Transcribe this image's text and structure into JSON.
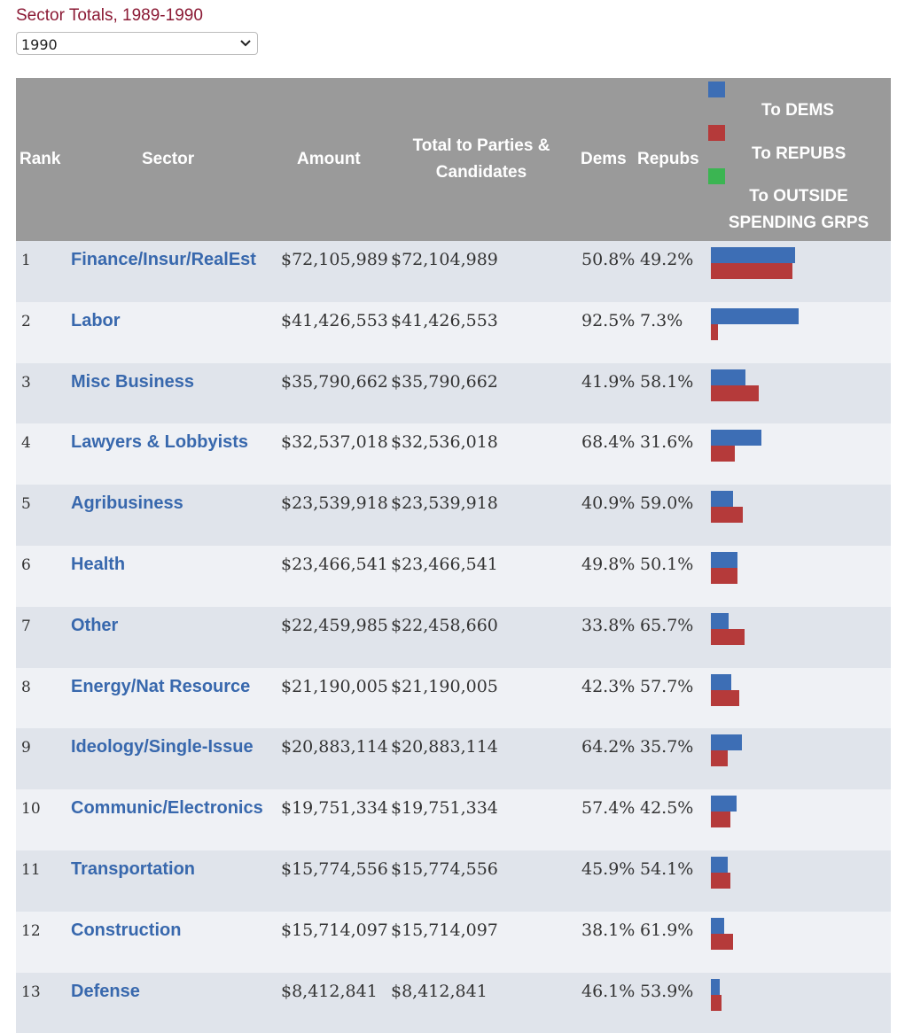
{
  "title": "Sector Totals, 1989-1990",
  "year_select": {
    "value": "1990"
  },
  "headers": {
    "rank": "Rank",
    "sector": "Sector",
    "amount": "Amount",
    "total_line1": "Total to Parties &",
    "total_line2": "Candidates",
    "dems": "Dems",
    "repubs": "Repubs",
    "legend_dems": "To DEMS",
    "legend_repubs": "To REPUBS",
    "legend_outside_line1": "To OUTSIDE",
    "legend_outside_line2": "SPENDING GRPS"
  },
  "colors": {
    "dems": "#3d6eb5",
    "repubs": "#b53a3a",
    "outside": "#3bb552",
    "title": "#8b1a35",
    "header_bg": "#9a9a9a"
  },
  "rows": [
    {
      "rank": "1",
      "sector": "Finance/Insur/RealEst",
      "amount": "$72,105,989",
      "total": "$72,104,989",
      "dems": "50.8%",
      "repubs": "49.2%",
      "dem_value": 36630000,
      "rep_value": 35470000
    },
    {
      "rank": "2",
      "sector": "Labor",
      "amount": "$41,426,553",
      "total": "$41,426,553",
      "dems": "92.5%",
      "repubs": "7.3%",
      "dem_value": 38320000,
      "rep_value": 3020000
    },
    {
      "rank": "3",
      "sector": "Misc Business",
      "amount": "$35,790,662",
      "total": "$35,790,662",
      "dems": "41.9%",
      "repubs": "58.1%",
      "dem_value": 15000000,
      "rep_value": 20790000
    },
    {
      "rank": "4",
      "sector": "Lawyers & Lobbyists",
      "amount": "$32,537,018",
      "total": "$32,536,018",
      "dems": "68.4%",
      "repubs": "31.6%",
      "dem_value": 22250000,
      "rep_value": 10280000
    },
    {
      "rank": "5",
      "sector": "Agribusiness",
      "amount": "$23,539,918",
      "total": "$23,539,918",
      "dems": "40.9%",
      "repubs": "59.0%",
      "dem_value": 9630000,
      "rep_value": 13890000
    },
    {
      "rank": "6",
      "sector": "Health",
      "amount": "$23,466,541",
      "total": "$23,466,541",
      "dems": "49.8%",
      "repubs": "50.1%",
      "dem_value": 11690000,
      "rep_value": 11760000
    },
    {
      "rank": "7",
      "sector": "Other",
      "amount": "$22,459,985",
      "total": "$22,458,660",
      "dems": "33.8%",
      "repubs": "65.7%",
      "dem_value": 7590000,
      "rep_value": 14760000
    },
    {
      "rank": "8",
      "sector": "Energy/Nat Resource",
      "amount": "$21,190,005",
      "total": "$21,190,005",
      "dems": "42.3%",
      "repubs": "57.7%",
      "dem_value": 8960000,
      "rep_value": 12230000
    },
    {
      "rank": "9",
      "sector": "Ideology/Single-Issue",
      "amount": "$20,883,114",
      "total": "$20,883,114",
      "dems": "64.2%",
      "repubs": "35.7%",
      "dem_value": 13410000,
      "rep_value": 7460000
    },
    {
      "rank": "10",
      "sector": "Communic/Electronics",
      "amount": "$19,751,334",
      "total": "$19,751,334",
      "dems": "57.4%",
      "repubs": "42.5%",
      "dem_value": 11340000,
      "rep_value": 8390000
    },
    {
      "rank": "11",
      "sector": "Transportation",
      "amount": "$15,774,556",
      "total": "$15,774,556",
      "dems": "45.9%",
      "repubs": "54.1%",
      "dem_value": 7240000,
      "rep_value": 8530000
    },
    {
      "rank": "12",
      "sector": "Construction",
      "amount": "$15,714,097",
      "total": "$15,714,097",
      "dems": "38.1%",
      "repubs": "61.9%",
      "dem_value": 5990000,
      "rep_value": 9730000
    },
    {
      "rank": "13",
      "sector": "Defense",
      "amount": "$8,412,841",
      "total": "$8,412,841",
      "dems": "46.1%",
      "repubs": "53.9%",
      "dem_value": 3880000,
      "rep_value": 4530000
    }
  ]
}
